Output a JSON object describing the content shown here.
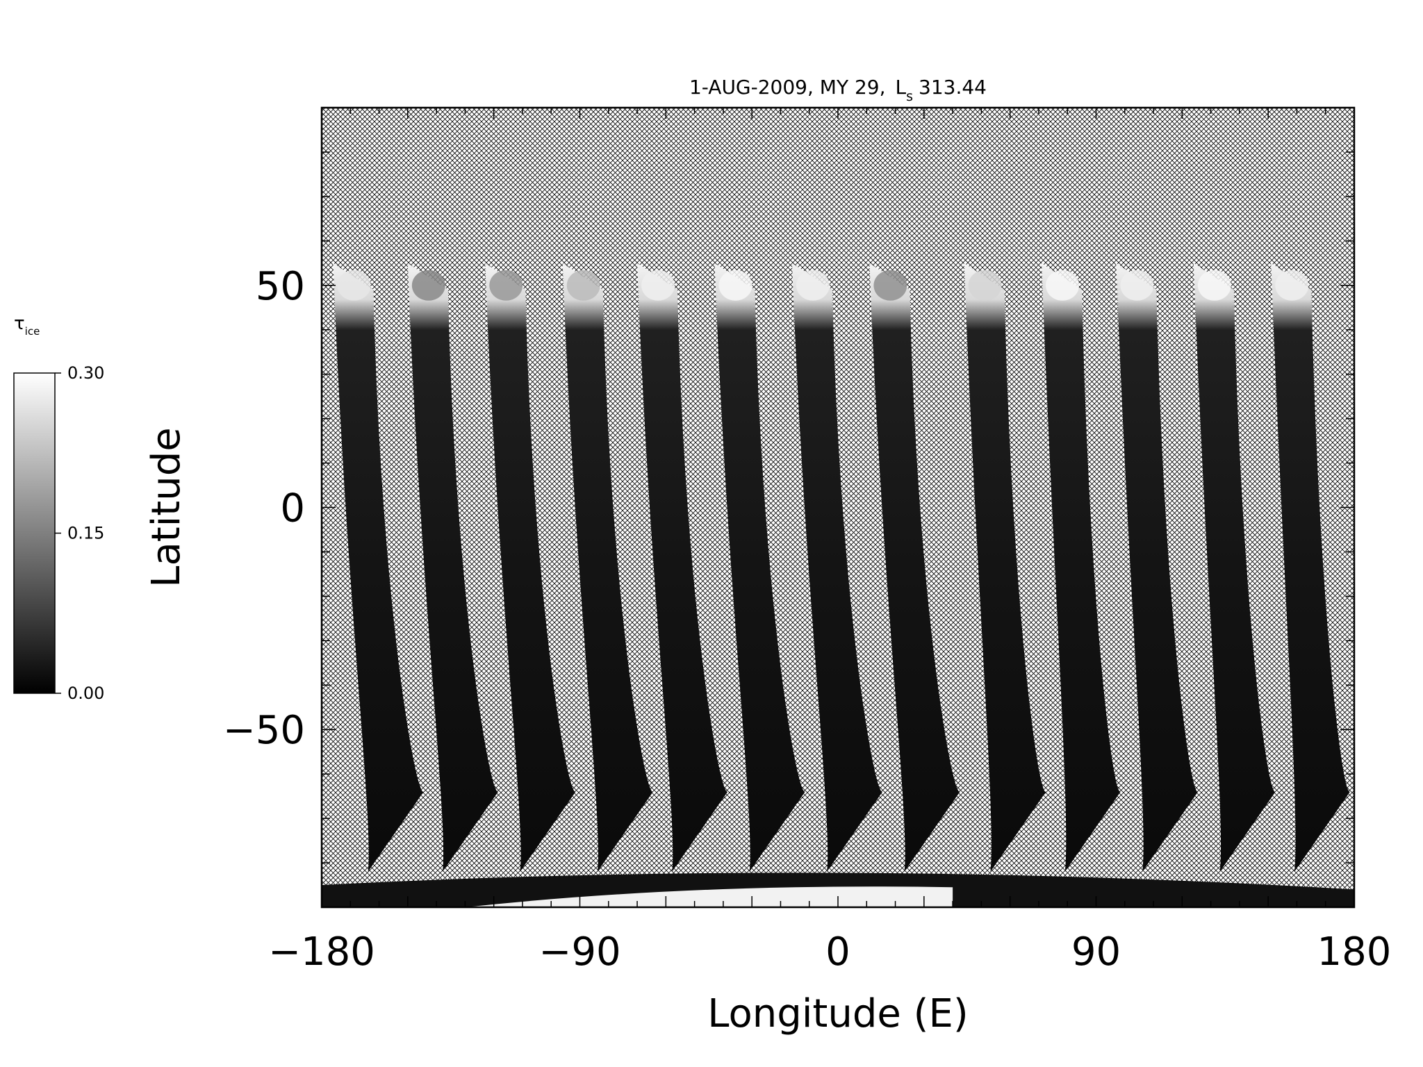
{
  "chart_data": {
    "type": "heatmap",
    "title": "1-AUG-2009, MY 29,",
    "title_ls_symbol": "L",
    "title_ls_subscript": "s",
    "title_ls_value": "313.44",
    "xlabel": "Longitude (E)",
    "ylabel": "Latitude",
    "xlim": [
      -180,
      180
    ],
    "ylim": [
      -90,
      90
    ],
    "xticks": [
      -180,
      -90,
      0,
      90,
      180
    ],
    "yticks": [
      -50,
      0,
      50
    ],
    "x_tick_labels": [
      "−180",
      "−90",
      "0",
      "90",
      "180"
    ],
    "y_tick_labels": [
      "−50",
      "0",
      "50"
    ],
    "no_data_pattern": "crosshatch",
    "colorbar": {
      "label_symbol": "τ",
      "label_subscript": "ice",
      "range": [
        0.0,
        0.3
      ],
      "tick_labels": [
        "0.30",
        "0.15",
        "0.00"
      ],
      "ticks": [
        0.3,
        0.15,
        0.0
      ],
      "colors": {
        "low": "#000000",
        "high": "#ffffff"
      }
    },
    "swaths": [
      {
        "lon_top": -176,
        "lon_bottom": -159,
        "cap_value": 0.27
      },
      {
        "lon_top": -150,
        "lon_bottom": -133,
        "cap_value": 0.16
      },
      {
        "lon_top": -123,
        "lon_bottom": -106,
        "cap_value": 0.18
      },
      {
        "lon_top": -96,
        "lon_bottom": -79,
        "cap_value": 0.22
      },
      {
        "lon_top": -70,
        "lon_bottom": -53,
        "cap_value": 0.28
      },
      {
        "lon_top": -43,
        "lon_bottom": -26,
        "cap_value": 0.29
      },
      {
        "lon_top": -16,
        "lon_bottom": 1,
        "cap_value": 0.28
      },
      {
        "lon_top": 11,
        "lon_bottom": 28,
        "cap_value": 0.17
      },
      {
        "lon_top": 44,
        "lon_bottom": 58,
        "cap_value": 0.25
      },
      {
        "lon_top": 71,
        "lon_bottom": 84,
        "cap_value": 0.29
      },
      {
        "lon_top": 97,
        "lon_bottom": 111,
        "cap_value": 0.28
      },
      {
        "lon_top": 124,
        "lon_bottom": 138,
        "cap_value": 0.29
      },
      {
        "lon_top": 151,
        "lon_bottom": 164,
        "cap_value": 0.28
      }
    ]
  }
}
